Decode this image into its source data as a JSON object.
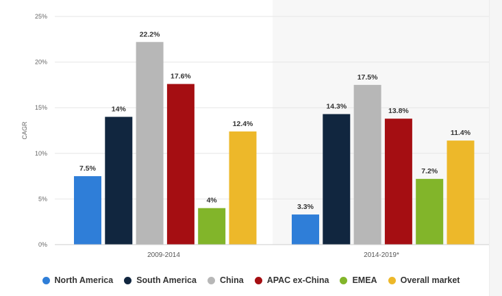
{
  "chart_data": {
    "type": "bar",
    "ylabel": "CAGR",
    "xlabel": "",
    "ylim": [
      0,
      25
    ],
    "yticks": [
      0,
      5,
      10,
      15,
      20,
      25
    ],
    "ytick_labels": [
      "0%",
      "5%",
      "10%",
      "15%",
      "20%",
      "25%"
    ],
    "categories": [
      "2009-2014",
      "2014-2019*"
    ],
    "highlighted_category_index": 1,
    "legend_position": "bottom",
    "series": [
      {
        "name": "North America",
        "color": "#2f7ed8",
        "values": [
          7.5,
          3.3
        ],
        "labels": [
          "7.5%",
          "3.3%"
        ]
      },
      {
        "name": "South America",
        "color": "#11263f",
        "values": [
          14,
          14.3
        ],
        "labels": [
          "14%",
          "14.3%"
        ]
      },
      {
        "name": "China",
        "color": "#b7b7b7",
        "values": [
          22.2,
          17.5
        ],
        "labels": [
          "22.2%",
          "17.5%"
        ]
      },
      {
        "name": "APAC ex-China",
        "color": "#a50e12",
        "values": [
          17.6,
          13.8
        ],
        "labels": [
          "17.6%",
          "13.8%"
        ]
      },
      {
        "name": "EMEA",
        "color": "#82b52a",
        "values": [
          4,
          7.2
        ],
        "labels": [
          "4%",
          "7.2%"
        ]
      },
      {
        "name": "Overall market",
        "color": "#edb82a",
        "values": [
          12.4,
          11.4
        ],
        "labels": [
          "12.4%",
          "11.4%"
        ]
      }
    ]
  }
}
